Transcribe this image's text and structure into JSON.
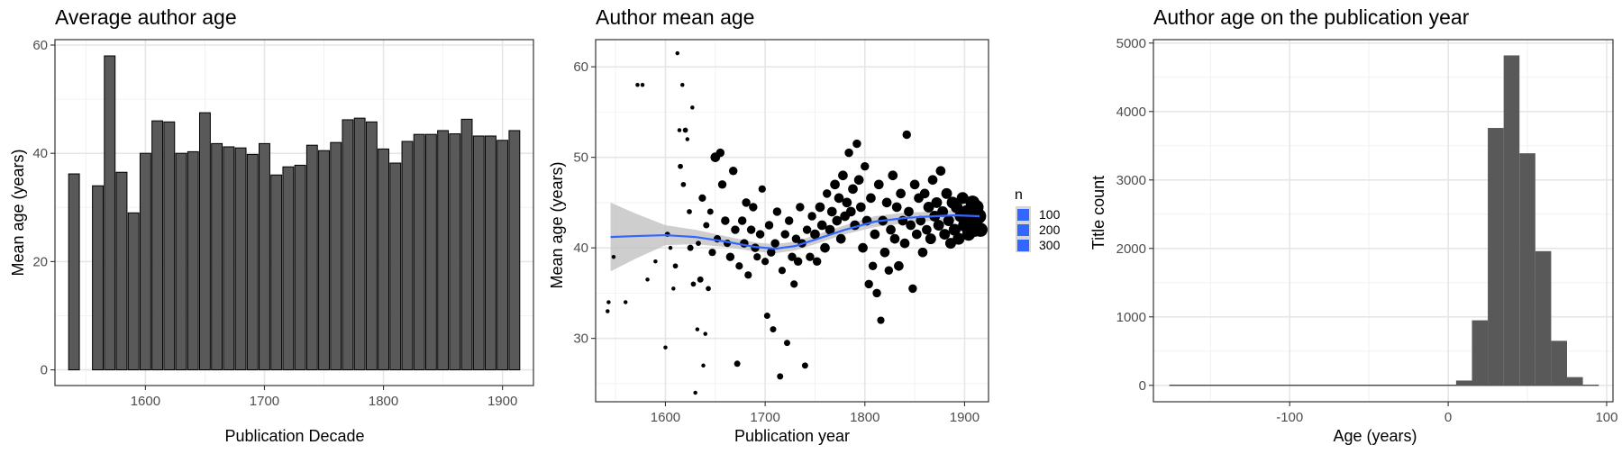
{
  "chart_data": [
    {
      "type": "bar",
      "title": "Average author age",
      "xlabel": "Publication Decade",
      "ylabel": "Mean age (years)",
      "xlim": [
        1524,
        1926
      ],
      "ylim": [
        -2.9,
        61
      ],
      "xticks": [
        1600,
        1700,
        1800,
        1900
      ],
      "yticks": [
        0,
        20,
        40,
        60
      ],
      "grid": true,
      "bar_width": 9,
      "x": [
        1540,
        1560,
        1570,
        1580,
        1590,
        1600,
        1610,
        1620,
        1630,
        1640,
        1650,
        1660,
        1670,
        1680,
        1690,
        1700,
        1710,
        1720,
        1730,
        1740,
        1750,
        1760,
        1770,
        1780,
        1790,
        1800,
        1810,
        1820,
        1830,
        1840,
        1850,
        1860,
        1870,
        1880,
        1890,
        1900,
        1910
      ],
      "values": [
        36.2,
        34.0,
        58.0,
        36.5,
        29.0,
        40.0,
        46.0,
        45.8,
        40.0,
        40.3,
        47.5,
        41.8,
        41.2,
        41.0,
        39.8,
        41.8,
        36.0,
        37.5,
        37.8,
        41.5,
        40.5,
        42.0,
        46.2,
        46.5,
        45.8,
        40.8,
        38.2,
        42.2,
        43.5,
        43.5,
        44.2,
        43.6,
        46.3,
        43.2,
        43.2,
        42.4,
        44.2
      ]
    },
    {
      "type": "scatter",
      "title": "Author mean age",
      "xlabel": "Publication year",
      "ylabel": "Mean age (years)",
      "xlim": [
        1530,
        1924
      ],
      "ylim": [
        23,
        63
      ],
      "xticks": [
        1600,
        1700,
        1800,
        1900
      ],
      "yticks": [
        30,
        40,
        50,
        60
      ],
      "grid": true,
      "legend": {
        "title": "n",
        "position": "right",
        "values": [
          "100",
          "200",
          "300"
        ]
      },
      "smooth": {
        "x": [
          1545,
          1570,
          1600,
          1630,
          1660,
          1690,
          1710,
          1730,
          1750,
          1780,
          1810,
          1840,
          1870,
          1890,
          1915
        ],
        "y": [
          41.2,
          41.3,
          41.4,
          41.2,
          40.7,
          40.1,
          39.9,
          40.2,
          40.9,
          42.0,
          42.9,
          43.3,
          43.5,
          43.6,
          43.5
        ],
        "ci_upper": [
          45.0,
          43.8,
          42.5,
          42.0,
          41.3,
          40.6,
          40.4,
          40.7,
          41.4,
          42.5,
          43.5,
          43.9,
          44.0,
          44.2,
          44.3
        ],
        "ci_lower": [
          37.4,
          38.8,
          40.3,
          40.4,
          40.1,
          39.6,
          39.4,
          39.7,
          40.4,
          41.5,
          42.3,
          42.7,
          43.0,
          43.0,
          42.7
        ]
      },
      "points": [
        [
          1542,
          33.0,
          2
        ],
        [
          1543,
          34.0,
          2
        ],
        [
          1548,
          39.0,
          2
        ],
        [
          1560,
          34.0,
          2
        ],
        [
          1572,
          58.0,
          2
        ],
        [
          1577,
          58.0,
          2
        ],
        [
          1582,
          36.5,
          2
        ],
        [
          1590,
          38.5,
          2
        ],
        [
          1600,
          29.0,
          2
        ],
        [
          1602,
          41.5,
          3
        ],
        [
          1605,
          40.0,
          2
        ],
        [
          1608,
          35.5,
          2
        ],
        [
          1610,
          38.0,
          3
        ],
        [
          1612,
          61.5,
          2
        ],
        [
          1614,
          53.0,
          2
        ],
        [
          1615,
          49.0,
          3
        ],
        [
          1617,
          58.0,
          2
        ],
        [
          1618,
          47.0,
          3
        ],
        [
          1620,
          53.0,
          3
        ],
        [
          1622,
          52.0,
          2
        ],
        [
          1624,
          44.0,
          3
        ],
        [
          1625,
          40.0,
          4
        ],
        [
          1627,
          55.5,
          2
        ],
        [
          1628,
          36.0,
          3
        ],
        [
          1630,
          24.0,
          2
        ],
        [
          1632,
          31.0,
          2
        ],
        [
          1633,
          40.5,
          3
        ],
        [
          1635,
          36.5,
          4
        ],
        [
          1637,
          45.5,
          5
        ],
        [
          1638,
          27.0,
          2
        ],
        [
          1640,
          30.5,
          2
        ],
        [
          1641,
          42.5,
          4
        ],
        [
          1643,
          35.5,
          3
        ],
        [
          1645,
          44.0,
          4
        ],
        [
          1647,
          39.5,
          5
        ],
        [
          1650,
          50.0,
          7
        ],
        [
          1652,
          41.0,
          5
        ],
        [
          1655,
          50.5,
          6
        ],
        [
          1657,
          47.0,
          6
        ],
        [
          1660,
          43.0,
          6
        ],
        [
          1662,
          40.5,
          5
        ],
        [
          1665,
          39.0,
          6
        ],
        [
          1668,
          48.5,
          6
        ],
        [
          1670,
          42.0,
          6
        ],
        [
          1672,
          27.2,
          4
        ],
        [
          1674,
          38.0,
          5
        ],
        [
          1677,
          43.0,
          6
        ],
        [
          1679,
          40.5,
          6
        ],
        [
          1681,
          45.0,
          6
        ],
        [
          1683,
          37.0,
          5
        ],
        [
          1686,
          42.0,
          6
        ],
        [
          1688,
          44.5,
          6
        ],
        [
          1690,
          40.0,
          6
        ],
        [
          1692,
          39.0,
          5
        ],
        [
          1695,
          41.5,
          6
        ],
        [
          1697,
          46.5,
          5
        ],
        [
          1700,
          38.5,
          5
        ],
        [
          1702,
          32.5,
          4
        ],
        [
          1704,
          42.5,
          6
        ],
        [
          1706,
          39.5,
          6
        ],
        [
          1708,
          31.0,
          4
        ],
        [
          1710,
          40.5,
          6
        ],
        [
          1712,
          44.0,
          6
        ],
        [
          1715,
          25.8,
          4
        ],
        [
          1717,
          37.5,
          5
        ],
        [
          1720,
          41.5,
          6
        ],
        [
          1722,
          29.5,
          4
        ],
        [
          1724,
          43.0,
          6
        ],
        [
          1727,
          39.0,
          6
        ],
        [
          1729,
          36.0,
          5
        ],
        [
          1731,
          41.0,
          6
        ],
        [
          1733,
          38.5,
          6
        ],
        [
          1735,
          44.5,
          6
        ],
        [
          1737,
          40.5,
          6
        ],
        [
          1740,
          27.0,
          4
        ],
        [
          1742,
          42.0,
          6
        ],
        [
          1745,
          39.0,
          6
        ],
        [
          1747,
          43.5,
          6
        ],
        [
          1750,
          41.5,
          7
        ],
        [
          1752,
          38.5,
          6
        ],
        [
          1755,
          44.5,
          7
        ],
        [
          1757,
          42.5,
          7
        ],
        [
          1760,
          40.0,
          7
        ],
        [
          1762,
          46.0,
          6
        ],
        [
          1765,
          42.0,
          7
        ],
        [
          1767,
          44.0,
          7
        ],
        [
          1770,
          47.0,
          7
        ],
        [
          1772,
          43.0,
          7
        ],
        [
          1774,
          45.5,
          7
        ],
        [
          1776,
          41.0,
          7
        ],
        [
          1778,
          48.0,
          7
        ],
        [
          1780,
          43.5,
          7
        ],
        [
          1782,
          45.0,
          7
        ],
        [
          1784,
          50.5,
          6
        ],
        [
          1786,
          44.0,
          7
        ],
        [
          1788,
          46.5,
          7
        ],
        [
          1790,
          42.5,
          7
        ],
        [
          1792,
          51.5,
          6
        ],
        [
          1794,
          47.5,
          7
        ],
        [
          1796,
          44.5,
          7
        ],
        [
          1798,
          40.0,
          7
        ],
        [
          1800,
          49.0,
          6
        ],
        [
          1802,
          43.0,
          7
        ],
        [
          1804,
          36.0,
          6
        ],
        [
          1806,
          45.5,
          7
        ],
        [
          1808,
          38.0,
          6
        ],
        [
          1810,
          41.5,
          7
        ],
        [
          1812,
          35.0,
          6
        ],
        [
          1814,
          47.0,
          7
        ],
        [
          1816,
          32.0,
          5
        ],
        [
          1818,
          43.0,
          7
        ],
        [
          1820,
          39.5,
          7
        ],
        [
          1822,
          45.0,
          7
        ],
        [
          1824,
          37.5,
          6
        ],
        [
          1826,
          42.0,
          7
        ],
        [
          1828,
          48.0,
          7
        ],
        [
          1830,
          41.0,
          7
        ],
        [
          1832,
          44.5,
          7
        ],
        [
          1834,
          38.0,
          7
        ],
        [
          1836,
          46.0,
          7
        ],
        [
          1838,
          43.0,
          7
        ],
        [
          1840,
          40.5,
          7
        ],
        [
          1842,
          52.5,
          6
        ],
        [
          1844,
          44.0,
          7
        ],
        [
          1846,
          42.5,
          7
        ],
        [
          1848,
          35.5,
          6
        ],
        [
          1850,
          47.0,
          7
        ],
        [
          1852,
          41.5,
          7
        ],
        [
          1854,
          45.5,
          7
        ],
        [
          1856,
          43.0,
          7
        ],
        [
          1858,
          39.5,
          7
        ],
        [
          1860,
          46.0,
          7
        ],
        [
          1862,
          42.0,
          7
        ],
        [
          1864,
          44.5,
          8
        ],
        [
          1866,
          41.0,
          8
        ],
        [
          1868,
          47.5,
          7
        ],
        [
          1870,
          43.5,
          8
        ],
        [
          1872,
          45.0,
          8
        ],
        [
          1874,
          42.5,
          8
        ],
        [
          1876,
          48.5,
          7
        ],
        [
          1878,
          44.0,
          8
        ],
        [
          1880,
          41.5,
          8
        ],
        [
          1882,
          46.0,
          8
        ],
        [
          1884,
          43.0,
          8
        ],
        [
          1886,
          40.5,
          8
        ],
        [
          1888,
          45.0,
          9
        ],
        [
          1890,
          42.0,
          9
        ],
        [
          1892,
          44.5,
          9
        ],
        [
          1894,
          41.0,
          9
        ],
        [
          1896,
          43.5,
          9
        ],
        [
          1898,
          45.5,
          9
        ],
        [
          1900,
          42.5,
          10
        ],
        [
          1902,
          44.0,
          10
        ],
        [
          1904,
          41.5,
          10
        ],
        [
          1906,
          43.0,
          10
        ],
        [
          1908,
          45.0,
          11
        ],
        [
          1910,
          42.0,
          11
        ],
        [
          1912,
          44.5,
          11
        ],
        [
          1914,
          43.5,
          12
        ],
        [
          1916,
          42.0,
          11
        ]
      ]
    },
    {
      "type": "bar",
      "subtype": "histogram",
      "title": "Author age on the publication year",
      "xlabel": "Age (years)",
      "ylabel": "Title count",
      "xlim": [
        -186,
        104
      ],
      "ylim": [
        -240,
        5050
      ],
      "xticks": [
        -100,
        0,
        100
      ],
      "yticks": [
        0,
        1000,
        2000,
        3000,
        4000,
        5000
      ],
      "grid": true,
      "bin_width": 10,
      "bin_starts": [
        5,
        15,
        25,
        35,
        45,
        55,
        65,
        75,
        85
      ],
      "values": [
        70,
        950,
        3760,
        4820,
        3390,
        1960,
        650,
        120,
        10
      ],
      "baseline_range": [
        -176,
        95
      ]
    }
  ]
}
